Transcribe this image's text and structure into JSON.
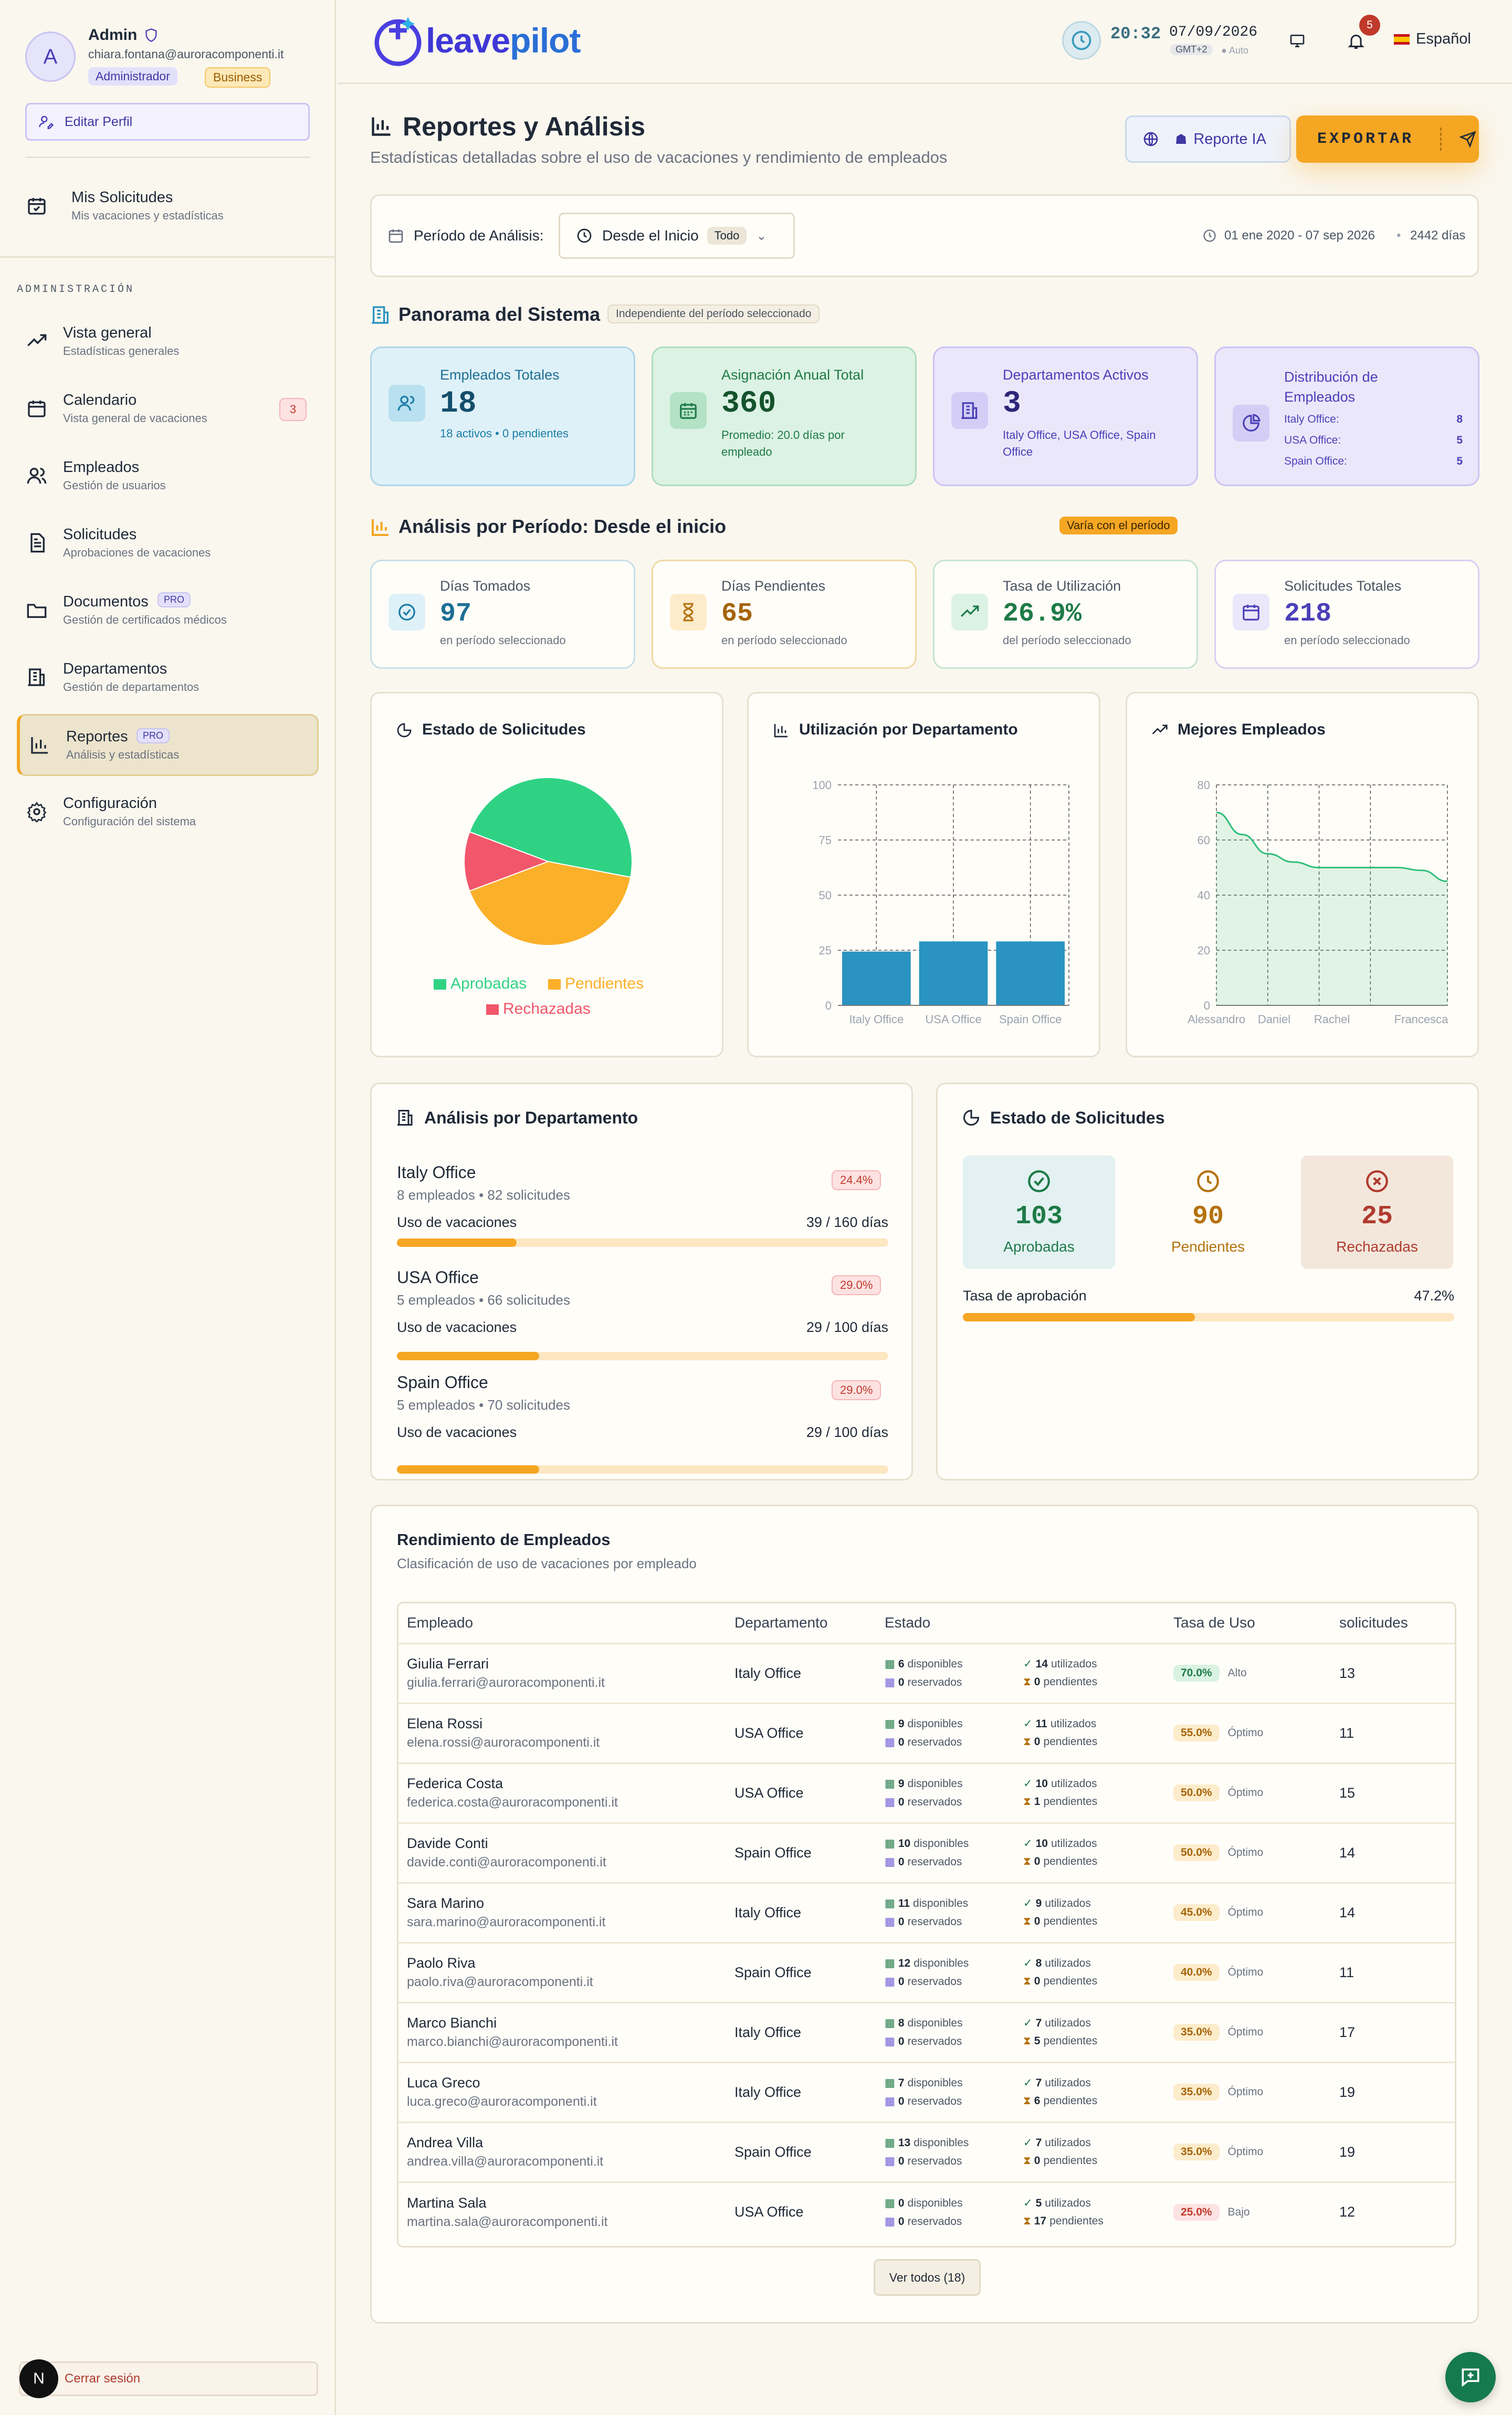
{
  "user": {
    "initial": "A",
    "name": "Admin",
    "email": "chiara.fontana@auroracomponenti.it",
    "badges": [
      "Administrador",
      "Business"
    ],
    "edit_label": "Editar Perfil"
  },
  "sidebar": {
    "my_requests": {
      "title": "Mis Solicitudes",
      "subtitle": "Mis vacaciones y estadísticas"
    },
    "section_label": "ADMINISTRACIÓN",
    "items": [
      {
        "title": "Vista general",
        "subtitle": "Estadísticas generales",
        "icon": "trend-icon"
      },
      {
        "title": "Calendario",
        "subtitle": "Vista general de vacaciones",
        "badge": "3",
        "icon": "calendar-icon"
      },
      {
        "title": "Empleados",
        "subtitle": "Gestión de usuarios",
        "icon": "users-icon"
      },
      {
        "title": "Solicitudes",
        "subtitle": "Aprobaciones de vacaciones",
        "icon": "document-icon"
      },
      {
        "title": "Documentos",
        "subtitle": "Gestión de certificados médicos",
        "pro": "PRO",
        "icon": "folder-icon"
      },
      {
        "title": "Departamentos",
        "subtitle": "Gestión de departamentos",
        "icon": "building-icon"
      },
      {
        "title": "Reportes",
        "subtitle": "Análisis y estadísticas",
        "pro": "PRO",
        "icon": "bar-chart-icon"
      },
      {
        "title": "Configuración",
        "subtitle": "Configuración del sistema",
        "icon": "gear-icon"
      }
    ],
    "logout": "Cerrar sesión",
    "avatar_initial": "N"
  },
  "topbar": {
    "logo_a": "leave",
    "logo_b": "pilot",
    "time": "20:32",
    "date": "07/09/2026",
    "tz": "GMT+2",
    "auto": "Auto",
    "notif_count": "5",
    "language": "Español"
  },
  "page": {
    "title": "Reportes y Análisis",
    "subtitle": "Estadísticas detalladas sobre el uso de vacaciones y rendimiento de empleados",
    "ai_button": "Reporte IA",
    "export_button": "EXPORTAR"
  },
  "period": {
    "label": "Período de Análisis:",
    "value": "Desde el Inicio",
    "tag": "Todo",
    "range": "01 ene 2020 - 07 sep 2026",
    "days": "2442 días"
  },
  "overview": {
    "title": "Panorama del Sistema",
    "tag": "Independiente del período seleccionado",
    "cards": [
      {
        "label": "Empleados Totales",
        "value": "18",
        "sub": "18 activos • 0 pendientes"
      },
      {
        "label": "Asignación Anual Total",
        "value": "360",
        "sub": "Promedio: 20.0 días por empleado"
      },
      {
        "label": "Departamentos Activos",
        "value": "3",
        "sub": "Italy Office, USA Office, Spain Office"
      },
      {
        "label": "Distribución de Empleados",
        "rows": [
          {
            "k": "Italy Office:",
            "v": "8"
          },
          {
            "k": "USA Office:",
            "v": "5"
          },
          {
            "k": "Spain Office:",
            "v": "5"
          }
        ]
      }
    ]
  },
  "period_analysis": {
    "title": "Análisis por Período: Desde el inicio",
    "tag": "Varía con el período",
    "cards": [
      {
        "label": "Días Tomados",
        "value": "97",
        "sub": "en período seleccionado"
      },
      {
        "label": "Días Pendientes",
        "value": "65",
        "sub": "en período seleccionado"
      },
      {
        "label": "Tasa de Utilización",
        "value": "26.9%",
        "sub": "del período seleccionado"
      },
      {
        "label": "Solicitudes Totales",
        "value": "218",
        "sub": "en período seleccionado"
      }
    ]
  },
  "charts": {
    "status_title": "Estado de Solicitudes",
    "util_title": "Utilización por Departamento",
    "best_title": "Mejores Empleados"
  },
  "chart_data": [
    {
      "type": "pie",
      "title": "Estado de Solicitudes",
      "categories": [
        "Aprobadas",
        "Pendientes",
        "Rechazadas"
      ],
      "values": [
        103,
        90,
        25
      ],
      "colors": [
        "#2fd283",
        "#fbb02a",
        "#f2566a"
      ]
    },
    {
      "type": "bar",
      "title": "Utilización por Departamento",
      "categories": [
        "Italy Office",
        "USA Office",
        "Spain Office"
      ],
      "values": [
        24.4,
        29.0,
        29.0
      ],
      "ylim": [
        0,
        100
      ],
      "yticks": [
        0,
        25,
        50,
        75,
        100
      ],
      "color": "#2a93c2"
    },
    {
      "type": "area",
      "title": "Mejores Empleados",
      "categories": [
        "Alessandro",
        "Daniel",
        "Rachel",
        "Francesca"
      ],
      "x": [
        0,
        1,
        2,
        3,
        4,
        5,
        6,
        7,
        8,
        9
      ],
      "values": [
        70,
        62,
        55,
        52,
        50,
        50,
        50,
        50,
        49,
        45
      ],
      "ylim": [
        0,
        80
      ],
      "yticks": [
        0,
        20,
        40,
        60,
        80
      ],
      "color": "#2fbf7a"
    }
  ],
  "dept_analysis": {
    "title": "Análisis por Departamento",
    "usage_label": "Uso de vacaciones",
    "items": [
      {
        "name": "Italy Office",
        "meta": "8 empleados • 82 solicitudes",
        "pct": "24.4%",
        "days": "39 / 160 días",
        "fill": 0.244
      },
      {
        "name": "USA Office",
        "meta": "5 empleados • 66 solicitudes",
        "pct": "29.0%",
        "days": "29 / 100 días",
        "fill": 0.29
      },
      {
        "name": "Spain Office",
        "meta": "5 empleados • 70 solicitudes",
        "pct": "29.0%",
        "days": "29 / 100 días",
        "fill": 0.29
      }
    ]
  },
  "status_panel": {
    "title": "Estado de Solicitudes",
    "approved": {
      "value": "103",
      "label": "Aprobadas"
    },
    "pending": {
      "value": "90",
      "label": "Pendientes"
    },
    "rejected": {
      "value": "25",
      "label": "Rechazadas"
    },
    "rate_label": "Tasa de aprobación",
    "rate": "47.2%",
    "rate_fill": 0.472
  },
  "employees": {
    "title": "Rendimiento de Empleados",
    "subtitle": "Clasificación de uso de vacaciones por empleado",
    "headers": [
      "Empleado",
      "Departamento",
      "Estado",
      "Tasa de Uso",
      "solicitudes"
    ],
    "rows": [
      {
        "name": "Giulia Ferrari",
        "email": "giulia.ferrari@auroracomponenti.it",
        "dept": "Italy Office",
        "disp": "6",
        "res": "0",
        "util": "14",
        "pend": "0",
        "rate": "70.0%",
        "level": "Alto",
        "req": "13"
      },
      {
        "name": "Elena Rossi",
        "email": "elena.rossi@auroracomponenti.it",
        "dept": "USA Office",
        "disp": "9",
        "res": "0",
        "util": "11",
        "pend": "0",
        "rate": "55.0%",
        "level": "Óptimo",
        "req": "11"
      },
      {
        "name": "Federica Costa",
        "email": "federica.costa@auroracomponenti.it",
        "dept": "USA Office",
        "disp": "9",
        "res": "0",
        "util": "10",
        "pend": "1",
        "rate": "50.0%",
        "level": "Óptimo",
        "req": "15"
      },
      {
        "name": "Davide Conti",
        "email": "davide.conti@auroracomponenti.it",
        "dept": "Spain Office",
        "disp": "10",
        "res": "0",
        "util": "10",
        "pend": "0",
        "rate": "50.0%",
        "level": "Óptimo",
        "req": "14"
      },
      {
        "name": "Sara Marino",
        "email": "sara.marino@auroracomponenti.it",
        "dept": "Italy Office",
        "disp": "11",
        "res": "0",
        "util": "9",
        "pend": "0",
        "rate": "45.0%",
        "level": "Óptimo",
        "req": "14"
      },
      {
        "name": "Paolo Riva",
        "email": "paolo.riva@auroracomponenti.it",
        "dept": "Spain Office",
        "disp": "12",
        "res": "0",
        "util": "8",
        "pend": "0",
        "rate": "40.0%",
        "level": "Óptimo",
        "req": "11"
      },
      {
        "name": "Marco Bianchi",
        "email": "marco.bianchi@auroracomponenti.it",
        "dept": "Italy Office",
        "disp": "8",
        "res": "0",
        "util": "7",
        "pend": "5",
        "rate": "35.0%",
        "level": "Óptimo",
        "req": "17"
      },
      {
        "name": "Luca Greco",
        "email": "luca.greco@auroracomponenti.it",
        "dept": "Italy Office",
        "disp": "7",
        "res": "0",
        "util": "7",
        "pend": "6",
        "rate": "35.0%",
        "level": "Óptimo",
        "req": "19"
      },
      {
        "name": "Andrea Villa",
        "email": "andrea.villa@auroracomponenti.it",
        "dept": "Spain Office",
        "disp": "13",
        "res": "0",
        "util": "7",
        "pend": "0",
        "rate": "35.0%",
        "level": "Óptimo",
        "req": "19"
      },
      {
        "name": "Martina Sala",
        "email": "martina.sala@auroracomponenti.it",
        "dept": "USA Office",
        "disp": "0",
        "res": "0",
        "util": "5",
        "pend": "17",
        "rate": "25.0%",
        "level": "Bajo",
        "req": "12"
      }
    ],
    "labels": {
      "disp": "disponibles",
      "res": "reservados",
      "util": "utilizados",
      "pend": "pendientes"
    },
    "view_all": "Ver todos (18)"
  }
}
